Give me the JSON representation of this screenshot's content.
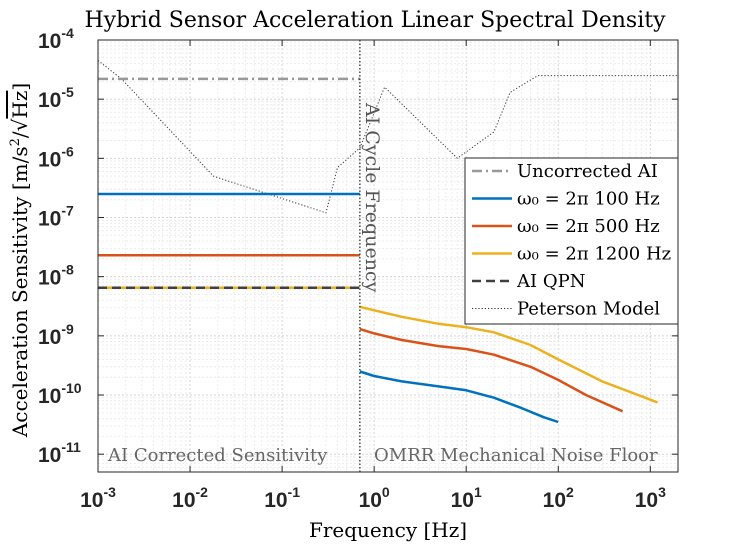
{
  "chart_data": {
    "type": "line",
    "title": "Hybrid Sensor Acceleration Linear Spectral Density",
    "xlabel": "Frequency [Hz]",
    "ylabel_main": "Acceleration Sensitivity [m/s",
    "ylabel_sup": "2",
    "ylabel_slash": "/",
    "ylabel_sqrt": "√",
    "ylabel_hz": "Hz",
    "ylabel_close": "]",
    "xscale": "log",
    "yscale": "log",
    "xlim": [
      0.001,
      2000
    ],
    "ylim": [
      5e-12,
      0.0001
    ],
    "grid": true,
    "x_ticks": [
      {
        "value": 0.001,
        "base": "10",
        "exp": "-3"
      },
      {
        "value": 0.01,
        "base": "10",
        "exp": "-2"
      },
      {
        "value": 0.1,
        "base": "10",
        "exp": "-1"
      },
      {
        "value": 1,
        "base": "10",
        "exp": "0"
      },
      {
        "value": 10,
        "base": "10",
        "exp": "1"
      },
      {
        "value": 100,
        "base": "10",
        "exp": "2"
      },
      {
        "value": 1000,
        "base": "10",
        "exp": "3"
      }
    ],
    "y_ticks": [
      {
        "value": 1e-11,
        "base": "10",
        "exp": "-11"
      },
      {
        "value": 1e-10,
        "base": "10",
        "exp": "-10"
      },
      {
        "value": 1e-09,
        "base": "10",
        "exp": "-9"
      },
      {
        "value": 1e-08,
        "base": "10",
        "exp": "-8"
      },
      {
        "value": 1e-07,
        "base": "10",
        "exp": "-7"
      },
      {
        "value": 1e-06,
        "base": "10",
        "exp": "-6"
      },
      {
        "value": 1e-05,
        "base": "10",
        "exp": "-5"
      },
      {
        "value": 0.0001,
        "base": "10",
        "exp": "-4"
      }
    ],
    "divider_x": 0.7,
    "annotations": {
      "divider_label": "AI Cycle Frequency",
      "left_region": "AI Corrected Sensitivity",
      "right_region": "OMRR Mechanical Noise Floor"
    },
    "legend_position": "center-right",
    "series": [
      {
        "name": "Uncorrected AI",
        "color": "#999999",
        "style": "dashdot",
        "width": 2.5,
        "x": [
          0.001,
          0.7
        ],
        "y": [
          2.2e-05,
          2.2e-05
        ]
      },
      {
        "name": "ω₀ = 2π 100 Hz",
        "color": "#0072BD",
        "style": "solid",
        "width": 2.5,
        "x": [
          0.001,
          0.7
        ],
        "y": [
          2.5e-07,
          2.5e-07
        ]
      },
      {
        "name": "ω₀ = 2π 500 Hz",
        "color": "#D95319",
        "style": "solid",
        "width": 2.5,
        "x": [
          0.001,
          0.7
        ],
        "y": [
          2.3e-08,
          2.3e-08
        ]
      },
      {
        "name": "ω₀ = 2π 1200 Hz",
        "color": "#EDB120",
        "style": "solid",
        "width": 2.5,
        "x": [
          0.001,
          0.7
        ],
        "y": [
          6.5e-09,
          6.5e-09
        ]
      },
      {
        "name": "AI QPN",
        "color": "#404040",
        "style": "dashed",
        "width": 2.5,
        "x": [
          0.001,
          0.7
        ],
        "y": [
          6.5e-09,
          6.5e-09
        ]
      },
      {
        "name": "Peterson Model",
        "color": "#333333",
        "style": "dotted",
        "width": 1,
        "x": [
          0.001,
          0.0018,
          0.018,
          0.3,
          0.4,
          0.7,
          1.3,
          8,
          20,
          30,
          60,
          2000
        ],
        "y": [
          4.5e-05,
          2.2e-05,
          5e-07,
          1.2e-07,
          7e-07,
          1.5e-06,
          1.6e-05,
          1e-06,
          2.8e-06,
          1.3e-05,
          2.5e-05,
          2.5e-05
        ]
      }
    ],
    "omrr_series": [
      {
        "name": "ω₀ = 2π 100 Hz (OMRR)",
        "color": "#0072BD",
        "x": [
          0.7,
          1,
          2,
          5,
          10,
          20,
          40,
          70,
          100
        ],
        "y": [
          2.5e-10,
          2.1e-10,
          1.7e-10,
          1.4e-10,
          1.2e-10,
          9e-11,
          6e-11,
          4.2e-11,
          3.5e-11
        ]
      },
      {
        "name": "ω₀ = 2π 500 Hz (OMRR)",
        "color": "#D95319",
        "x": [
          0.7,
          1,
          2,
          5,
          10,
          20,
          50,
          100,
          200,
          500
        ],
        "y": [
          1.3e-09,
          1.1e-09,
          8.5e-10,
          6.7e-10,
          6e-10,
          4.8e-10,
          3e-10,
          1.8e-10,
          1e-10,
          5.3e-11
        ]
      },
      {
        "name": "ω₀ = 2π 1200 Hz (OMRR)",
        "color": "#EDB120",
        "x": [
          0.7,
          1,
          2,
          5,
          10,
          20,
          50,
          100,
          300,
          1200
        ],
        "y": [
          3.1e-09,
          2.7e-09,
          2.1e-09,
          1.6e-09,
          1.4e-09,
          1.15e-09,
          7e-10,
          4e-10,
          1.7e-10,
          7.5e-11
        ]
      }
    ]
  }
}
